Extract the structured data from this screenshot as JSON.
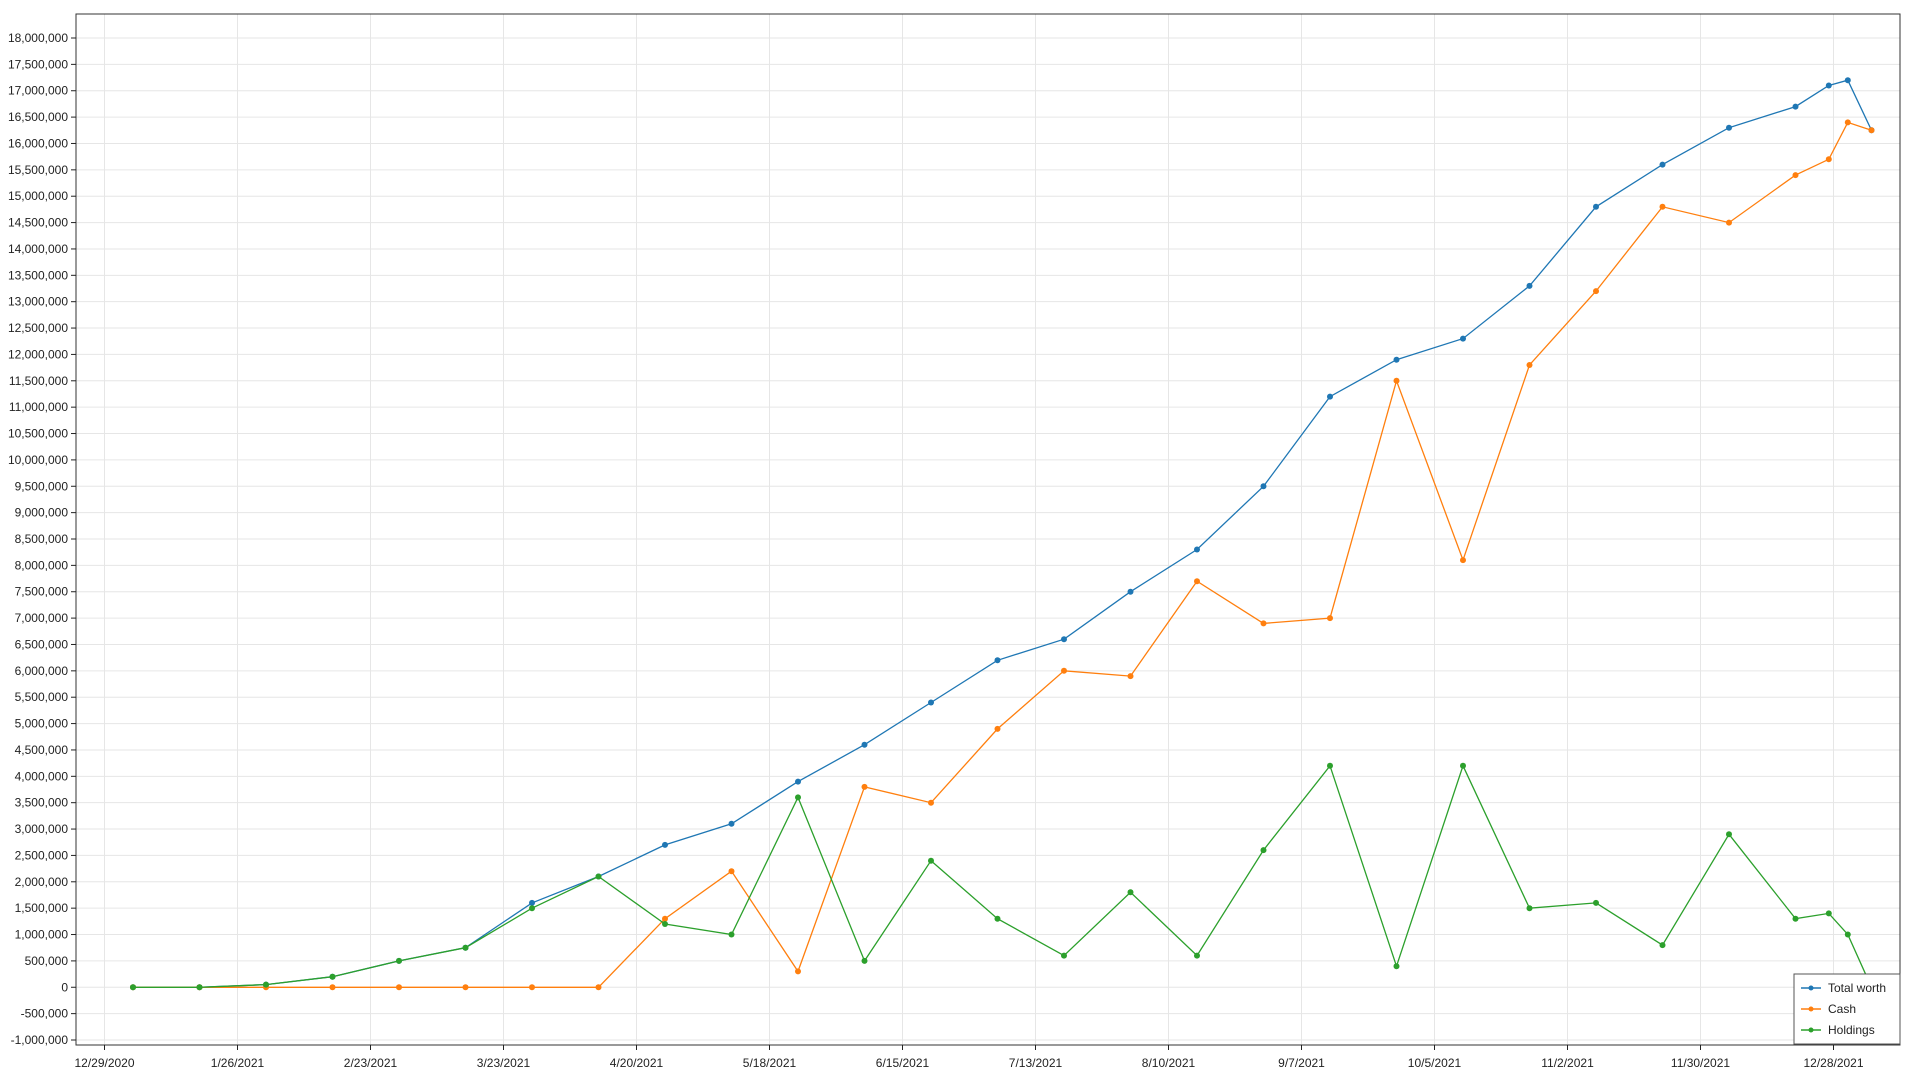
{
  "chart_data": {
    "type": "line",
    "title": "",
    "xlabel": "",
    "ylabel": "",
    "x_tick_labels": [
      "12/29/2020",
      "1/26/2021",
      "2/23/2021",
      "3/23/2021",
      "4/20/2021",
      "5/18/2021",
      "6/15/2021",
      "7/13/2021",
      "8/10/2021",
      "9/7/2021",
      "10/5/2021",
      "11/2/2021",
      "11/30/2021",
      "12/28/2021"
    ],
    "y_tick_labels": [
      "18,000,000",
      "17,500,000",
      "17,000,000",
      "16,500,000",
      "16,000,000",
      "15,500,000",
      "15,000,000",
      "14,500,000",
      "14,000,000",
      "13,500,000",
      "13,000,000",
      "12,500,000",
      "12,000,000",
      "11,500,000",
      "11,000,000",
      "10,500,000",
      "10,000,000",
      "9,500,000",
      "9,000,000",
      "8,500,000",
      "8,000,000",
      "7,500,000",
      "7,000,000",
      "6,500,000",
      "6,000,000",
      "5,500,000",
      "5,000,000",
      "4,500,000",
      "4,000,000",
      "3,500,000",
      "3,000,000",
      "2,500,000",
      "2,000,000",
      "1,500,000",
      "1,000,000",
      "500,000",
      "0",
      "-500,000",
      "-1,000,000"
    ],
    "ylim": [
      -1000000,
      18000000
    ],
    "x_range": [
      "2020-12-23",
      "2022-01-11"
    ],
    "grid": true,
    "legend_position": "bottom-right",
    "x": [
      "2021-01-04",
      "2021-01-18",
      "2021-02-01",
      "2021-02-15",
      "2021-03-01",
      "2021-03-15",
      "2021-03-29",
      "2021-04-12",
      "2021-04-26",
      "2021-05-10",
      "2021-05-24",
      "2021-06-07",
      "2021-06-21",
      "2021-07-05",
      "2021-07-19",
      "2021-08-02",
      "2021-08-16",
      "2021-08-30",
      "2021-09-13",
      "2021-09-27",
      "2021-10-11",
      "2021-10-25",
      "2021-11-08",
      "2021-11-22",
      "2021-12-06",
      "2021-12-20",
      "2021-12-27",
      "2021-12-31",
      "2022-01-05"
    ],
    "series": [
      {
        "name": "Total worth",
        "color": "#1f77b4",
        "values": [
          0,
          0,
          50000,
          200000,
          500000,
          750000,
          1600000,
          2100000,
          2700000,
          3100000,
          3900000,
          4600000,
          5400000,
          6200000,
          6600000,
          7500000,
          8300000,
          9500000,
          11200000,
          11900000,
          12300000,
          13300000,
          14800000,
          15600000,
          16300000,
          16700000,
          17100000,
          17200000,
          16250000
        ]
      },
      {
        "name": "Cash",
        "color": "#ff7f0e",
        "values": [
          0,
          0,
          0,
          0,
          0,
          0,
          0,
          0,
          1300000,
          2200000,
          300000,
          3800000,
          3500000,
          4900000,
          6000000,
          5900000,
          7700000,
          6900000,
          7000000,
          11500000,
          8100000,
          11800000,
          13200000,
          14800000,
          14500000,
          15400000,
          15700000,
          16400000,
          16250000
        ]
      },
      {
        "name": "Holdings",
        "color": "#2ca02c",
        "values": [
          0,
          0,
          50000,
          200000,
          500000,
          750000,
          1500000,
          2100000,
          1200000,
          1000000,
          3600000,
          500000,
          2400000,
          1300000,
          600000,
          1800000,
          600000,
          2600000,
          4200000,
          400000,
          4200000,
          1500000,
          1600000,
          800000,
          2900000,
          1300000,
          1400000,
          1000000,
          0
        ]
      }
    ]
  }
}
